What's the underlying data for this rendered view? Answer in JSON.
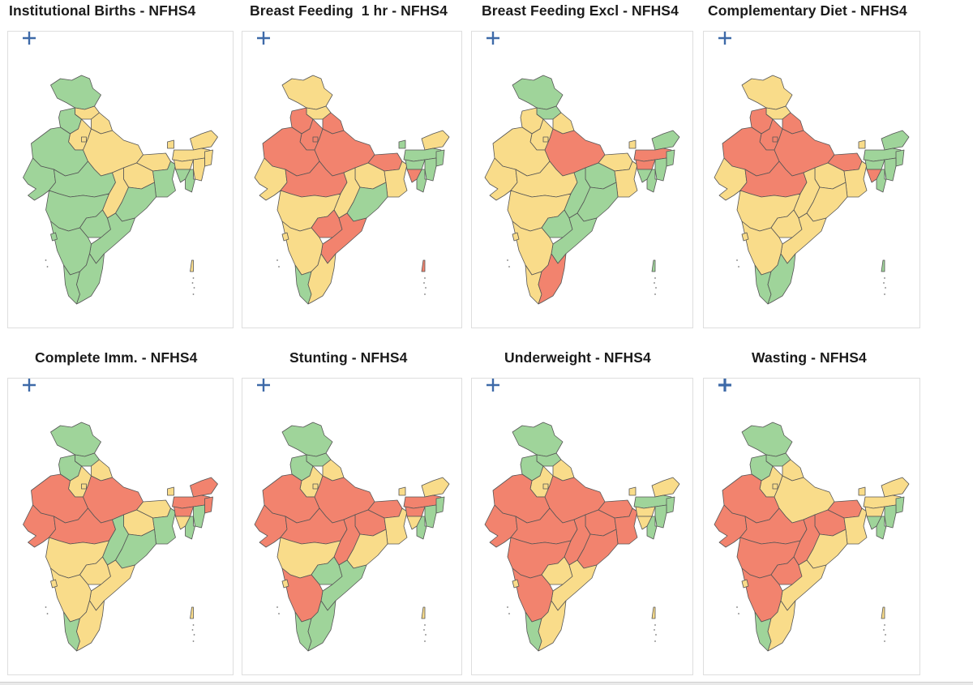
{
  "colors": {
    "green": "#9fd49a",
    "yellow": "#f9dc8a",
    "red": "#f2836e",
    "border": "#555555",
    "zoom": "#3e6aa8"
  },
  "zoom_icon": "plus-icon",
  "maps": [
    {
      "title": "Institutional Births - NFHS4",
      "states": {
        "jk": "g",
        "hp": "y",
        "pb": "g",
        "uk": "y",
        "hr": "y",
        "dl": "y",
        "rj": "g",
        "up": "y",
        "br": "y",
        "gj": "g",
        "mp": "g",
        "jh": "y",
        "wb": "g",
        "cg": "y",
        "od": "g",
        "mh": "g",
        "tg": "g",
        "ap": "g",
        "ka": "g",
        "ga": "g",
        "kl": "g",
        "tn": "g",
        "sk": "y",
        "ar": "y",
        "as": "y",
        "mg": "y",
        "nl": "y",
        "mn": "y",
        "mz": "g",
        "tr": "g",
        "an": "y"
      }
    },
    {
      "title": "Breast Feeding  1 hr - NFHS4",
      "states": {
        "jk": "y",
        "hp": "y",
        "pb": "r",
        "uk": "r",
        "hr": "r",
        "dl": "r",
        "rj": "r",
        "up": "r",
        "br": "r",
        "gj": "y",
        "mp": "r",
        "jh": "y",
        "wb": "y",
        "cg": "y",
        "od": "g",
        "mh": "y",
        "tg": "r",
        "ap": "r",
        "ka": "y",
        "ga": "y",
        "kl": "g",
        "tn": "y",
        "sk": "g",
        "ar": "y",
        "as": "g",
        "mg": "g",
        "nl": "g",
        "mn": "g",
        "mz": "g",
        "tr": "r",
        "an": "r"
      }
    },
    {
      "title": "Breast Feeding Excl - NFHS4",
      "states": {
        "jk": "g",
        "hp": "g",
        "pb": "y",
        "uk": "y",
        "hr": "y",
        "dl": "y",
        "rj": "y",
        "up": "r",
        "br": "y",
        "gj": "y",
        "mp": "y",
        "jh": "g",
        "wb": "y",
        "cg": "g",
        "od": "g",
        "mh": "y",
        "tg": "g",
        "ap": "g",
        "ka": "y",
        "ga": "y",
        "kl": "y",
        "tn": "r",
        "sk": "y",
        "ar": "g",
        "as": "r",
        "mg": "r",
        "nl": "g",
        "mn": "g",
        "mz": "g",
        "tr": "g",
        "an": "g"
      }
    },
    {
      "title": "Complementary Diet - NFHS4",
      "states": {
        "jk": "y",
        "hp": "y",
        "pb": "r",
        "uk": "r",
        "hr": "r",
        "dl": "r",
        "rj": "r",
        "up": "r",
        "br": "r",
        "gj": "y",
        "mp": "r",
        "jh": "y",
        "wb": "y",
        "cg": "y",
        "od": "y",
        "mh": "y",
        "tg": "y",
        "ap": "y",
        "ka": "y",
        "ga": "y",
        "kl": "g",
        "tn": "g",
        "sk": "y",
        "ar": "g",
        "as": "g",
        "mg": "g",
        "nl": "g",
        "mn": "g",
        "mz": "g",
        "tr": "r",
        "an": "g"
      }
    },
    {
      "title": "Complete Imm. - NFHS4",
      "states": {
        "jk": "g",
        "hp": "g",
        "pb": "g",
        "uk": "y",
        "hr": "y",
        "dl": "y",
        "rj": "r",
        "up": "r",
        "br": "y",
        "gj": "r",
        "mp": "r",
        "jh": "y",
        "wb": "g",
        "cg": "g",
        "od": "g",
        "mh": "y",
        "tg": "y",
        "ap": "y",
        "ka": "y",
        "ga": "y",
        "kl": "g",
        "tn": "y",
        "sk": "y",
        "ar": "r",
        "as": "r",
        "mg": "r",
        "nl": "r",
        "mn": "g",
        "mz": "g",
        "tr": "y",
        "an": "y"
      }
    },
    {
      "title": "Stunting - NFHS4",
      "states": {
        "jk": "g",
        "hp": "g",
        "pb": "g",
        "uk": "y",
        "hr": "y",
        "dl": "y",
        "rj": "r",
        "up": "r",
        "br": "r",
        "gj": "r",
        "mp": "r",
        "jh": "r",
        "wb": "y",
        "cg": "r",
        "od": "y",
        "mh": "y",
        "tg": "g",
        "ap": "g",
        "ka": "r",
        "ga": "y",
        "kl": "g",
        "tn": "g",
        "sk": "y",
        "ar": "y",
        "as": "r",
        "mg": "r",
        "nl": "g",
        "mn": "g",
        "mz": "g",
        "tr": "y",
        "an": "y"
      }
    },
    {
      "title": "Underweight - NFHS4",
      "states": {
        "jk": "g",
        "hp": "g",
        "pb": "g",
        "uk": "y",
        "hr": "y",
        "dl": "y",
        "rj": "r",
        "up": "r",
        "br": "r",
        "gj": "r",
        "mp": "r",
        "jh": "r",
        "wb": "r",
        "cg": "r",
        "od": "r",
        "mh": "r",
        "tg": "y",
        "ap": "y",
        "ka": "r",
        "ga": "y",
        "kl": "g",
        "tn": "y",
        "sk": "y",
        "ar": "y",
        "as": "g",
        "mg": "y",
        "nl": "g",
        "mn": "g",
        "mz": "g",
        "tr": "y",
        "an": "y"
      }
    },
    {
      "title": "Wasting - NFHS4",
      "states": {
        "jk": "g",
        "hp": "g",
        "pb": "g",
        "uk": "y",
        "hr": "y",
        "dl": "y",
        "rj": "r",
        "up": "y",
        "br": "r",
        "gj": "r",
        "mp": "r",
        "jh": "r",
        "wb": "y",
        "cg": "r",
        "od": "y",
        "mh": "r",
        "tg": "r",
        "ap": "y",
        "ka": "r",
        "ga": "y",
        "kl": "g",
        "tn": "y",
        "sk": "y",
        "ar": "y",
        "as": "y",
        "mg": "y",
        "nl": "g",
        "mn": "g",
        "mz": "g",
        "tr": "g",
        "an": "y"
      }
    }
  ]
}
